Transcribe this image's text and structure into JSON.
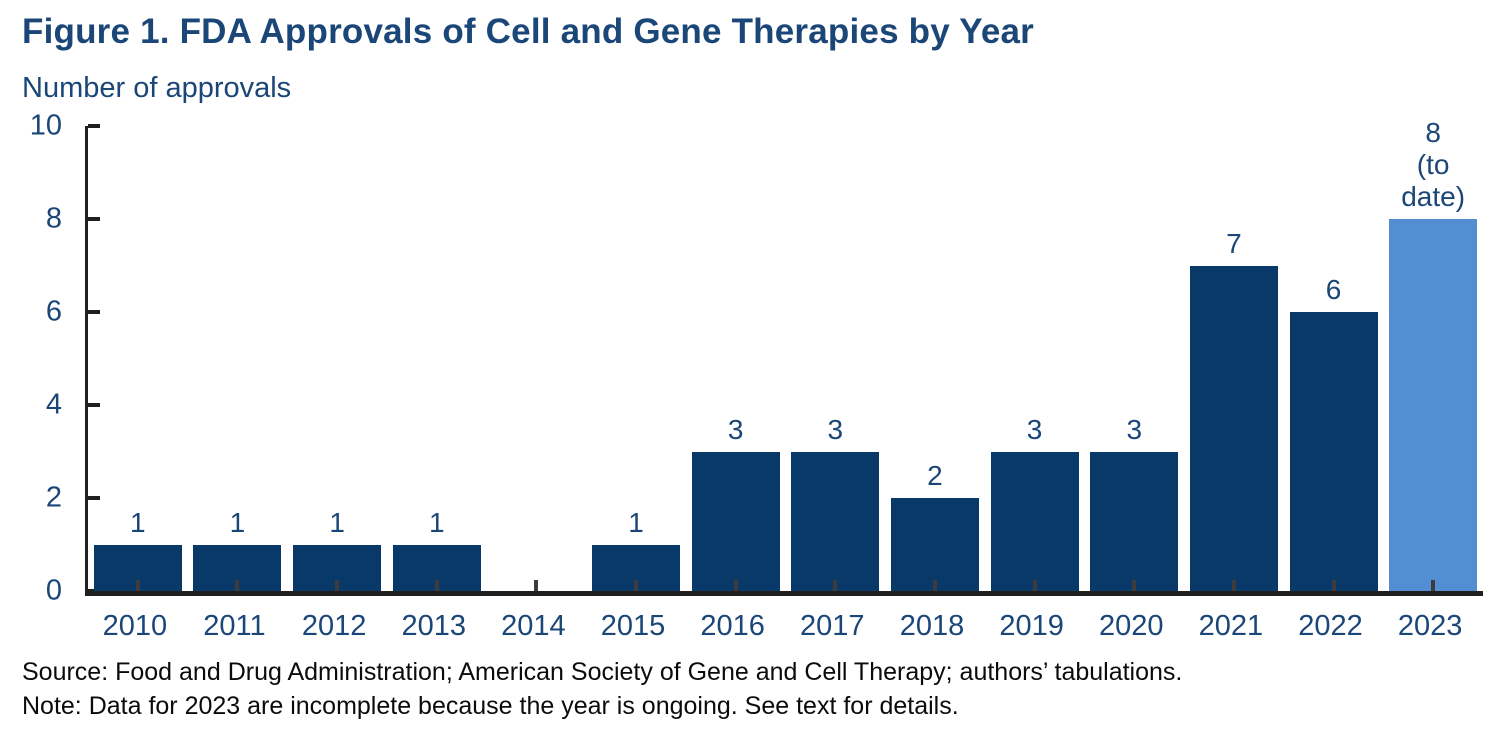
{
  "page": {
    "title": "Figure 1. FDA Approvals of Cell and Gene Therapies by Year",
    "subtitle": "Number of approvals",
    "source_line": "Source: Food and Drug Administration; American Society of Gene and Cell Therapy; authors’ tabulations.",
    "note_line": "Note: Data for 2023 are incomplete because the year is ongoing. See text for details."
  },
  "chart_data": {
    "type": "bar",
    "title": "Figure 1. FDA Approvals of Cell and Gene Therapies by Year",
    "ylabel": "Number of approvals",
    "xlabel": "",
    "categories": [
      "2010",
      "2011",
      "2012",
      "2013",
      "2014",
      "2015",
      "2016",
      "2017",
      "2018",
      "2019",
      "2020",
      "2021",
      "2022",
      "2023"
    ],
    "values": [
      1,
      1,
      1,
      1,
      0,
      1,
      3,
      3,
      2,
      3,
      3,
      7,
      6,
      8
    ],
    "bar_label_lines": [
      [
        "1"
      ],
      [
        "1"
      ],
      [
        "1"
      ],
      [
        "1"
      ],
      [],
      [
        "1"
      ],
      [
        "3"
      ],
      [
        "3"
      ],
      [
        "2"
      ],
      [
        "3"
      ],
      [
        "3"
      ],
      [
        "7"
      ],
      [
        "6"
      ],
      [
        "8",
        "(to date)"
      ]
    ],
    "highlight_index": 13,
    "highlight_meaning": "2023 value is partial, to date",
    "ylim": [
      0,
      10
    ],
    "yticks": [
      0,
      2,
      4,
      6,
      8,
      10
    ],
    "grid": false,
    "legend": "none",
    "colors": {
      "bar": "#083969",
      "highlight_bar": "#538ed2",
      "text_blue": "#1b4678",
      "axis": "#221f1f",
      "footer_text": "#0b0b0b"
    }
  }
}
